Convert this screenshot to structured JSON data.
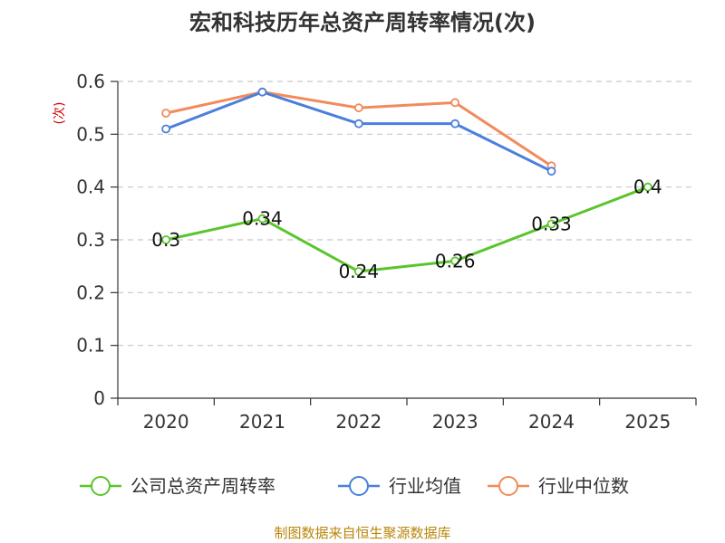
{
  "chart_data": {
    "type": "line",
    "title": "宏和科技历年总资产周转率情况(次)",
    "ylabel": "(次)",
    "xlabel": "",
    "categories": [
      "2020",
      "2021",
      "2022",
      "2023",
      "2024",
      "2025"
    ],
    "ylim": [
      0,
      0.6
    ],
    "yticks": [
      0,
      0.1,
      0.2,
      0.3,
      0.4,
      0.5,
      0.6
    ],
    "ytick_labels": [
      "0",
      "0.1",
      "0.2",
      "0.3",
      "0.4",
      "0.5",
      "0.6"
    ],
    "grid": "horizontal-dashed",
    "legend_position": "bottom",
    "series": [
      {
        "name": "公司总资产周转率",
        "color": "#5ac52c",
        "values": [
          0.3,
          0.34,
          0.24,
          0.26,
          0.33,
          0.4
        ],
        "labels": [
          "0.3",
          "0.34",
          "0.24",
          "0.26",
          "0.33",
          "0.4"
        ],
        "show_labels": true
      },
      {
        "name": "行业均值",
        "color": "#4a7fdc",
        "values": [
          0.51,
          0.58,
          0.52,
          0.52,
          0.43,
          null
        ],
        "show_labels": false
      },
      {
        "name": "行业中位数",
        "color": "#f28a5b",
        "values": [
          0.54,
          0.58,
          0.55,
          0.56,
          0.44,
          null
        ],
        "show_labels": false
      }
    ]
  },
  "source": "制图数据来自恒生聚源数据库"
}
